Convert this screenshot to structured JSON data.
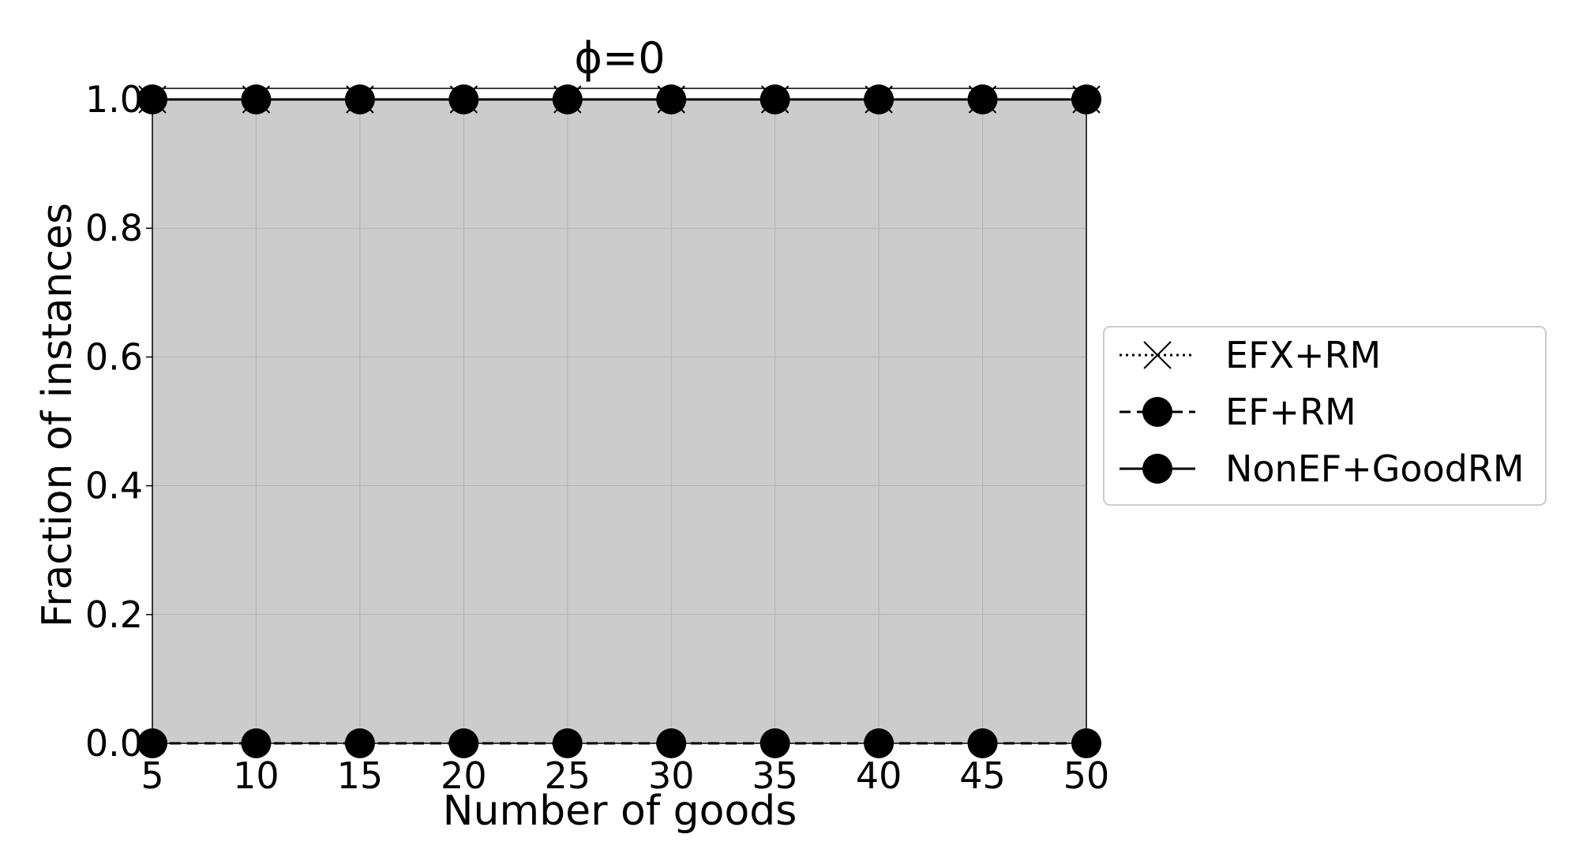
{
  "chart_data": {
    "type": "line",
    "title": "ϕ=0",
    "xlabel": "Number of goods",
    "ylabel": "Fraction of instances",
    "x": [
      5,
      10,
      15,
      20,
      25,
      30,
      35,
      40,
      45,
      50
    ],
    "xlim": [
      5,
      50
    ],
    "ylim": [
      0,
      1.0
    ],
    "xticks": [
      "5",
      "10",
      "15",
      "20",
      "25",
      "30",
      "35",
      "40",
      "45",
      "50"
    ],
    "yticks": [
      "0.0",
      "0.2",
      "0.4",
      "0.6",
      "0.8",
      "1.0"
    ],
    "grid": true,
    "legend_position": "right, outside plot",
    "shaded_region": {
      "from": 0,
      "to": 1.0,
      "color": "#cccccc"
    },
    "series": [
      {
        "name": "EFX+RM",
        "values": [
          1,
          1,
          1,
          1,
          1,
          1,
          1,
          1,
          1,
          1
        ],
        "line_style": "dotted",
        "marker": "x",
        "color": "#000000"
      },
      {
        "name": "EF+RM",
        "values": [
          0,
          0,
          0,
          0,
          0,
          0,
          0,
          0,
          0,
          0
        ],
        "line_style": "dashed",
        "marker": "circle",
        "color": "#000000"
      },
      {
        "name": "NonEF+GoodRM",
        "values": [
          1,
          1,
          1,
          1,
          1,
          1,
          1,
          1,
          1,
          1
        ],
        "line_style": "solid",
        "marker": "circle",
        "color": "#000000"
      }
    ]
  }
}
